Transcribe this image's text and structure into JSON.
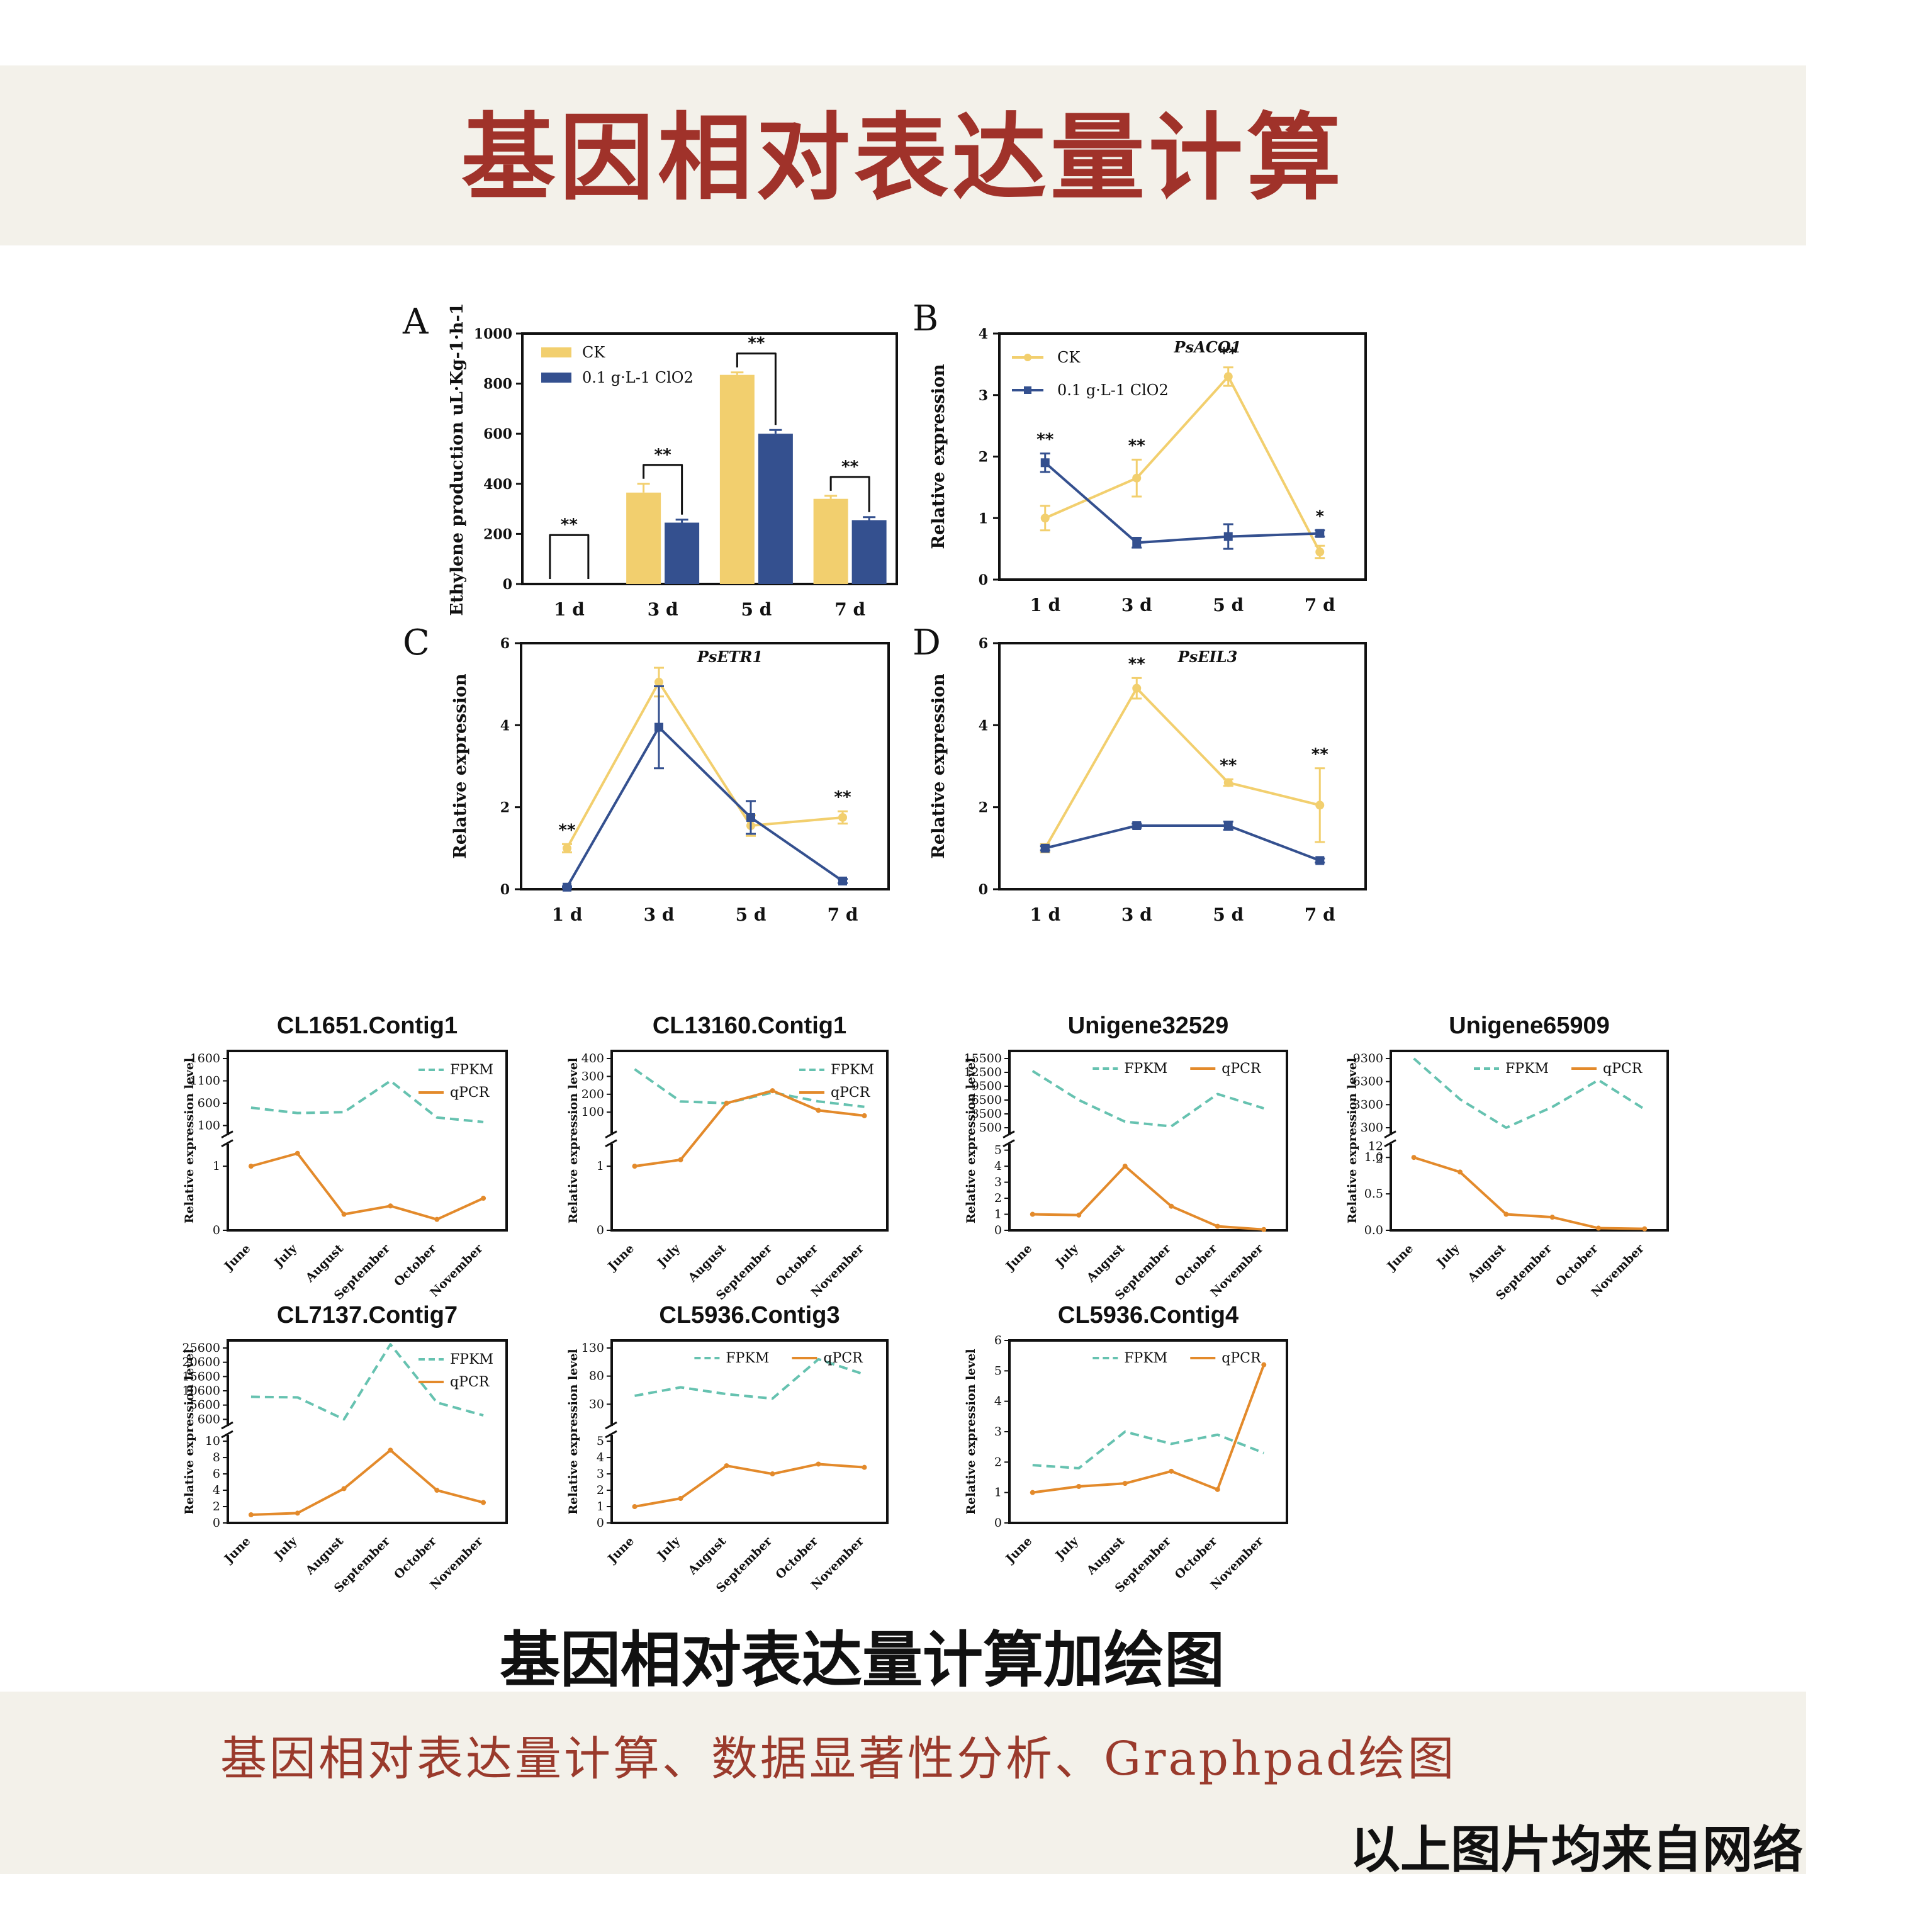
{
  "header": {
    "title": "基因相对表达量计算"
  },
  "footer": {
    "caption": "基因相对表达量计算加绘图",
    "subtitle": "基因相对表达量计算、数据显著性分析、Graphpad绘图",
    "source_note": "以上图片均来自网络"
  },
  "colors": {
    "ck": "#f2cf6e",
    "treat": "#34508f",
    "fpkm": "#66c2b0",
    "qpcr": "#e38a2b",
    "title": "#a0322a"
  },
  "chart_data": [
    {
      "panel": "A",
      "type": "bar",
      "ylabel": "Ethylene production uL·Kg-1·h-1",
      "categories": [
        "1 d",
        "3 d",
        "5 d",
        "7 d"
      ],
      "ylim": [
        0,
        1000
      ],
      "yticks": [
        0,
        200,
        400,
        600,
        800,
        1000
      ],
      "legend": [
        "CK",
        "0.1 g·L-1 ClO2"
      ],
      "series": [
        {
          "name": "CK",
          "values": [
            0,
            365,
            835,
            340
          ],
          "errors": [
            0,
            35,
            10,
            12
          ]
        },
        {
          "name": "0.1 g·L-1 ClO2",
          "values": [
            0,
            245,
            600,
            255
          ],
          "errors": [
            0,
            12,
            15,
            12
          ]
        }
      ],
      "significance": [
        "**",
        "**",
        "**",
        "**"
      ]
    },
    {
      "panel": "B",
      "type": "line",
      "gene": "PsACO1",
      "ylabel": "Relative expression",
      "categories": [
        "1 d",
        "3 d",
        "5 d",
        "7 d"
      ],
      "ylim": [
        0,
        4
      ],
      "yticks": [
        0,
        1,
        2,
        3,
        4
      ],
      "legend": [
        "CK",
        "0.1 g·L-1 ClO2"
      ],
      "series": [
        {
          "name": "CK",
          "values": [
            1.0,
            1.65,
            3.3,
            0.45
          ],
          "errors": [
            0.2,
            0.3,
            0.15,
            0.1
          ]
        },
        {
          "name": "0.1 g·L-1 ClO2",
          "values": [
            1.9,
            0.6,
            0.7,
            0.75
          ],
          "errors": [
            0.15,
            0.08,
            0.2,
            0.05
          ]
        }
      ],
      "significance": [
        "**",
        "**",
        "**",
        "*"
      ]
    },
    {
      "panel": "C",
      "type": "line",
      "gene": "PsETR1",
      "ylabel": "Relative expression",
      "categories": [
        "1 d",
        "3 d",
        "5 d",
        "7 d"
      ],
      "ylim": [
        0,
        6
      ],
      "yticks": [
        0,
        2,
        4,
        6
      ],
      "series": [
        {
          "name": "CK",
          "values": [
            1.0,
            5.05,
            1.55,
            1.75
          ],
          "errors": [
            0.1,
            0.35,
            0.25,
            0.15
          ]
        },
        {
          "name": "0.1 g·L-1 ClO2",
          "values": [
            0.05,
            3.95,
            1.75,
            0.2
          ],
          "errors": [
            0.02,
            1.0,
            0.4,
            0.05
          ]
        }
      ],
      "significance": [
        "**",
        "",
        "",
        "**"
      ]
    },
    {
      "panel": "D",
      "type": "line",
      "gene": "PsEIL3",
      "ylabel": "Relative expression",
      "categories": [
        "1 d",
        "3 d",
        "5 d",
        "7 d"
      ],
      "ylim": [
        0,
        6
      ],
      "yticks": [
        0,
        2,
        4,
        6
      ],
      "series": [
        {
          "name": "CK",
          "values": [
            1.0,
            4.9,
            2.6,
            2.05
          ],
          "errors": [
            0.1,
            0.25,
            0.08,
            0.9
          ]
        },
        {
          "name": "0.1 g·L-1 ClO2",
          "values": [
            1.0,
            1.55,
            1.55,
            0.7
          ],
          "errors": [
            0.05,
            0.05,
            0.1,
            0.05
          ]
        }
      ],
      "significance": [
        "",
        "**",
        "**",
        "**"
      ]
    },
    {
      "title": "CL1651.Contig1",
      "type": "line",
      "ylabel": "Relative expression level",
      "categories": [
        "June",
        "July",
        "August",
        "September",
        "October",
        "November"
      ],
      "upper_ticks": [
        100,
        600,
        1100,
        1600
      ],
      "upper_ylim": [
        0,
        1600
      ],
      "lower_ticks": [
        0,
        1
      ],
      "lower_ylim": [
        0,
        1.25
      ],
      "series": [
        {
          "name": "FPKM",
          "values": [
            500,
            380,
            400,
            1100,
            280,
            180
          ]
        },
        {
          "name": "qPCR",
          "values": [
            1.0,
            1.2,
            0.25,
            0.38,
            0.17,
            0.5
          ]
        }
      ]
    },
    {
      "title": "CL13160.Contig1",
      "type": "line",
      "ylabel": "Relative expression level",
      "categories": [
        "June",
        "July",
        "August",
        "September",
        "October",
        "November"
      ],
      "upper_ticks": [
        100,
        200,
        300,
        400
      ],
      "upper_ylim": [
        0,
        400
      ],
      "lower_ticks": [
        0,
        1
      ],
      "lower_ylim": [
        0,
        1.25
      ],
      "series": [
        {
          "name": "FPKM",
          "values": [
            340,
            160,
            150,
            210,
            160,
            130
          ]
        },
        {
          "name": "qPCR",
          "values": [
            1.0,
            1.1,
            150,
            220,
            110,
            80
          ]
        }
      ]
    },
    {
      "title": "Unigene32529",
      "type": "line",
      "ylabel": "Relative expression level",
      "categories": [
        "June",
        "July",
        "August",
        "September",
        "October",
        "November"
      ],
      "upper_ticks": [
        500,
        3500,
        6500,
        9500,
        12500,
        15500
      ],
      "upper_ylim": [
        0,
        15500
      ],
      "lower_ticks": [
        0,
        1,
        2,
        3,
        4,
        5
      ],
      "lower_ylim": [
        0,
        5
      ],
      "series": [
        {
          "name": "FPKM",
          "values": [
            12800,
            6500,
            1800,
            800,
            7800,
            4700
          ]
        },
        {
          "name": "qPCR",
          "values": [
            1.0,
            0.95,
            4.0,
            1.5,
            0.25,
            0.05
          ]
        }
      ]
    },
    {
      "title": "Unigene65909",
      "type": "line",
      "ylabel": "Relative expression level",
      "categories": [
        "June",
        "July",
        "August",
        "September",
        "October",
        "November"
      ],
      "upper_ticks": [
        300,
        3300,
        6300,
        9300
      ],
      "upper_ylim": [
        0,
        9300
      ],
      "mid_ticks": [
        2,
        12
      ],
      "lower_ticks": [
        0.0,
        0.5,
        1.0
      ],
      "lower_ylim": [
        0,
        1.1
      ],
      "series": [
        {
          "name": "FPKM",
          "values": [
            9300,
            4000,
            300,
            3000,
            6500,
            2700
          ]
        },
        {
          "name": "qPCR",
          "values": [
            1.0,
            0.8,
            0.22,
            0.18,
            0.03,
            0.02
          ]
        }
      ]
    },
    {
      "title": "CL7137.Contig7",
      "type": "line",
      "ylabel": "Relative expression level",
      "categories": [
        "June",
        "July",
        "August",
        "September",
        "October",
        "November"
      ],
      "upper_ticks": [
        600,
        5600,
        10600,
        15600,
        20600,
        25600
      ],
      "upper_ylim": [
        0,
        25600
      ],
      "lower_ticks": [
        0,
        2,
        4,
        6,
        8,
        10
      ],
      "lower_ylim": [
        0,
        10
      ],
      "series": [
        {
          "name": "FPKM",
          "values": [
            8500,
            8300,
            600,
            28000,
            6500,
            2000
          ]
        },
        {
          "name": "qPCR",
          "values": [
            1.0,
            1.2,
            4.2,
            8.9,
            4.0,
            2.5
          ]
        }
      ]
    },
    {
      "title": "CL5936.Contig3",
      "type": "line",
      "ylabel": "Relative expression level",
      "categories": [
        "June",
        "July",
        "August",
        "September",
        "October",
        "November"
      ],
      "upper_ticks": [
        30,
        80,
        130
      ],
      "upper_ylim": [
        0,
        130
      ],
      "lower_ticks": [
        0,
        1,
        2,
        3,
        4,
        5
      ],
      "lower_ylim": [
        0,
        5
      ],
      "series": [
        {
          "name": "FPKM",
          "values": [
            45,
            60,
            48,
            40,
            110,
            83
          ]
        },
        {
          "name": "qPCR",
          "values": [
            1.0,
            1.5,
            3.5,
            3.0,
            3.6,
            3.4
          ]
        }
      ]
    },
    {
      "title": "CL5936.Contig4",
      "type": "line",
      "ylabel": "Relative expression level",
      "categories": [
        "June",
        "July",
        "August",
        "September",
        "October",
        "November"
      ],
      "ylim": [
        0,
        6
      ],
      "yticks": [
        0,
        1,
        2,
        3,
        4,
        5,
        6
      ],
      "series": [
        {
          "name": "FPKM",
          "values": [
            1.9,
            1.8,
            3.0,
            2.6,
            2.9,
            2.3
          ]
        },
        {
          "name": "qPCR",
          "values": [
            1.0,
            1.2,
            1.3,
            1.7,
            1.1,
            5.2
          ]
        }
      ]
    }
  ]
}
